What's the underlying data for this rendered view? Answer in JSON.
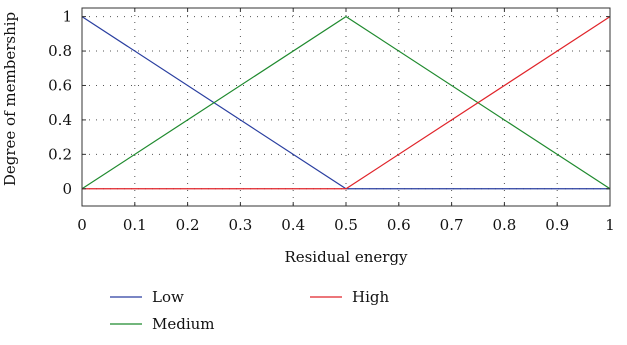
{
  "chart_data": {
    "type": "line",
    "xlabel": "Residual energy",
    "ylabel": "Degree of membership",
    "xlim": [
      0,
      1
    ],
    "ylim": [
      -0.1,
      1.05
    ],
    "xticks": [
      "0",
      "0.1",
      "0.2",
      "0.3",
      "0.4",
      "0.5",
      "0.6",
      "0.7",
      "0.8",
      "0.9",
      "1"
    ],
    "yticks": [
      "0",
      "0.2",
      "0.4",
      "0.6",
      "0.8",
      "1"
    ],
    "grid": true,
    "legend_position": "bottom",
    "series": [
      {
        "name": "Low",
        "color": "#2a3fa0",
        "x": [
          0,
          0.5,
          1
        ],
        "y": [
          1,
          0,
          0
        ]
      },
      {
        "name": "Medium",
        "color": "#1f8a2e",
        "x": [
          0,
          0.5,
          1
        ],
        "y": [
          0,
          1,
          0
        ]
      },
      {
        "name": "High",
        "color": "#e0242a",
        "x": [
          0,
          0.5,
          1
        ],
        "y": [
          0,
          0,
          1
        ]
      }
    ]
  }
}
